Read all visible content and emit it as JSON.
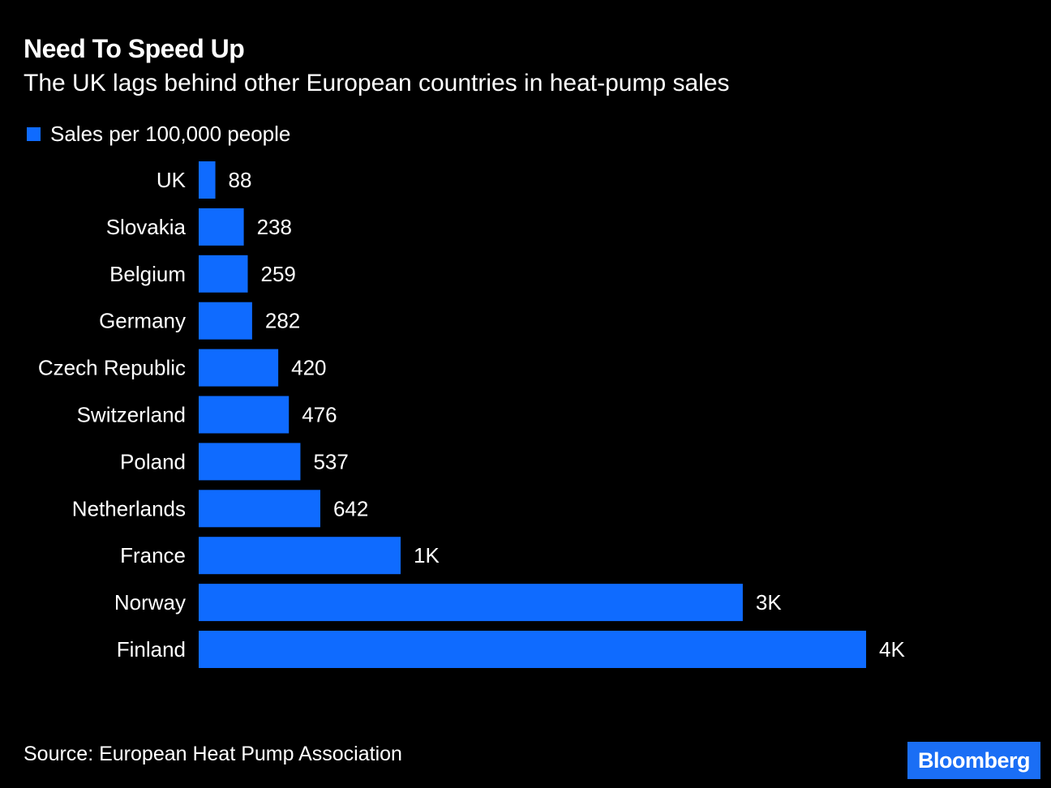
{
  "chart_data": {
    "type": "bar",
    "orientation": "horizontal",
    "title": "Need To Speed Up",
    "subtitle": "The UK lags behind other European countries in heat-pump sales",
    "categories": [
      "UK",
      "Slovakia",
      "Belgium",
      "Germany",
      "Czech Republic",
      "Switzerland",
      "Poland",
      "Netherlands",
      "France",
      "Norway",
      "Finland"
    ],
    "series": [
      {
        "name": "Sales per 100,000 people",
        "color": "#0f6bff",
        "values": [
          88,
          238,
          259,
          282,
          420,
          476,
          537,
          642,
          1066,
          2872,
          3523
        ],
        "labels": [
          "88",
          "238",
          "259",
          "282",
          "420",
          "476",
          "537",
          "642",
          "1K",
          "3K",
          "4K"
        ]
      }
    ],
    "xlim": [
      0,
      3523
    ],
    "grid": false,
    "legend": "top-left"
  },
  "source": "Source: European Heat Pump Association",
  "logo": "Bloomberg",
  "colors": {
    "background": "#000000",
    "bar": "#0f6bff",
    "logo_bg": "#1a6ef5"
  }
}
